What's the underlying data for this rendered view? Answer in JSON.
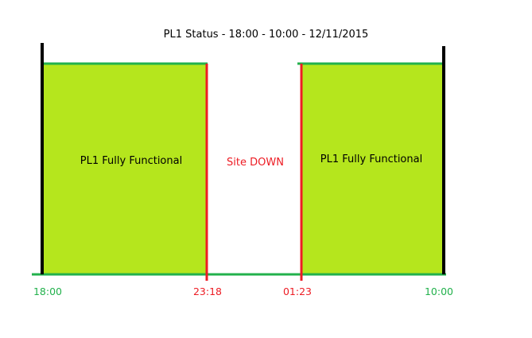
{
  "title": "PL1 Status - 18:00 - 10:00 - 12/11/2015",
  "colors": {
    "functional_fill": "#b5e61d",
    "green_line": "#22b14c",
    "red_line": "#ed1c24",
    "black_line": "#000000",
    "down_text": "#ed1c24",
    "functional_text": "#000000"
  },
  "segments": [
    {
      "label": "PL1 Fully Functional",
      "start": "18:00",
      "end": "23:18",
      "state": "up"
    },
    {
      "label": "Site DOWN",
      "start": "23:18",
      "end": "01:23",
      "state": "down"
    },
    {
      "label": "PL1 Fully Functional",
      "start": "01:23",
      "end": "10:00",
      "state": "up"
    }
  ],
  "ticks": [
    {
      "label": "18:00",
      "color": "#22b14c"
    },
    {
      "label": "23:18",
      "color": "#ed1c24"
    },
    {
      "label": "01:23",
      "color": "#ed1c24"
    },
    {
      "label": "10:00",
      "color": "#22b14c"
    }
  ]
}
